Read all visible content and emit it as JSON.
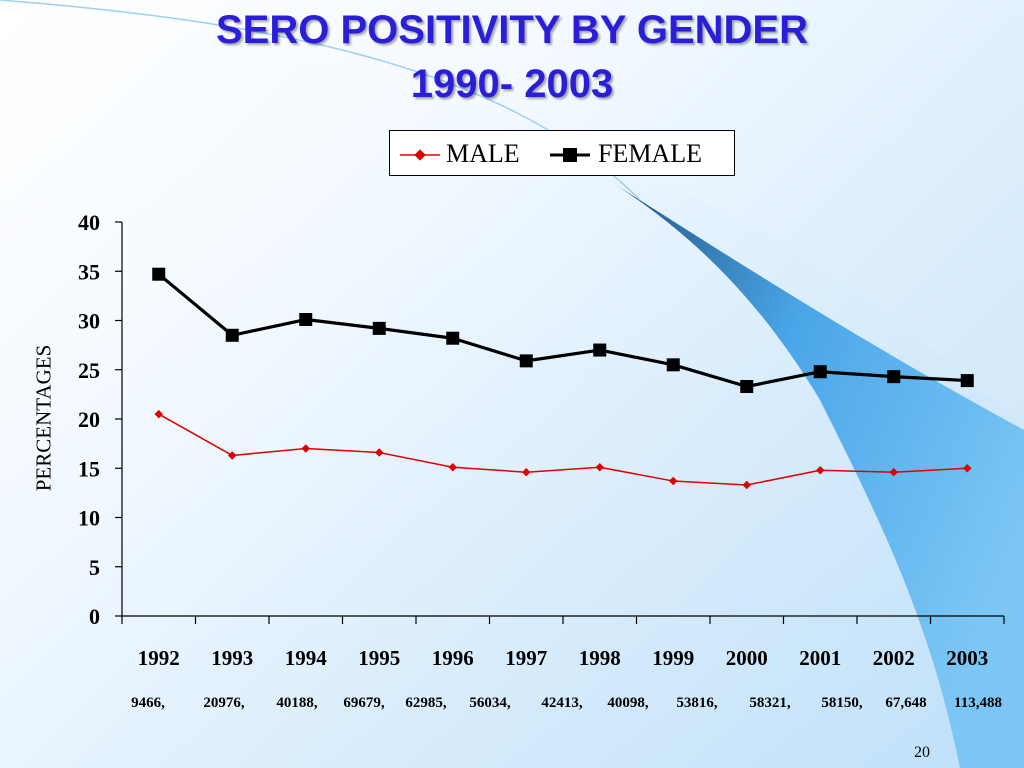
{
  "slide": {
    "title_line1": "SERO POSITIVITY BY GENDER",
    "title_line2": "1990- 2003",
    "slide_number": "20",
    "sample_counts": [
      "9466,",
      "20976,",
      "40188,",
      "69679,",
      "62985,",
      "56034,",
      "42413,",
      "40098,",
      "53816,",
      "58321,",
      "58150,",
      "67,648",
      "113,488"
    ],
    "colors": {
      "title": "#2a1fd6",
      "male": "#e00000",
      "female": "#000000",
      "accent_blue": "#4aa6e8"
    }
  },
  "chart_data": {
    "type": "line",
    "categories": [
      "1992",
      "1993",
      "1994",
      "1995",
      "1996",
      "1997",
      "1998",
      "1999",
      "2000",
      "2001",
      "2002",
      "2003"
    ],
    "series": [
      {
        "name": "MALE",
        "values": [
          20.5,
          16.3,
          17.0,
          16.6,
          15.1,
          14.6,
          15.1,
          13.7,
          13.3,
          14.8,
          14.6,
          15.0
        ]
      },
      {
        "name": "FEMALE",
        "values": [
          34.7,
          28.5,
          30.1,
          29.2,
          28.2,
          25.9,
          27.0,
          25.5,
          23.3,
          24.8,
          24.3,
          23.9
        ]
      }
    ],
    "ylabel": "PERCENTAGES",
    "xlabel": "",
    "ylim": [
      0,
      40
    ],
    "yticks": [
      "0",
      "5",
      "10",
      "15",
      "20",
      "25",
      "30",
      "35",
      "40"
    ],
    "legend": "top-center",
    "grid": false
  }
}
